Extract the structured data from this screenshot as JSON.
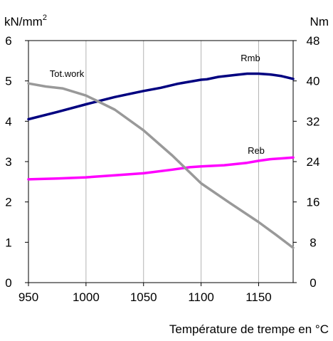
{
  "chart_data": {
    "type": "line",
    "xlabel": "Température de trempe en °C",
    "ylabel_left": "kN/mm",
    "ylabel_left_sup": "2",
    "ylabel_right": "Nm",
    "xlim": [
      950,
      1180
    ],
    "ylim_left": [
      0,
      6
    ],
    "ylim_right": [
      0,
      48
    ],
    "x_ticks": [
      "950",
      "1000",
      "1050",
      "1100",
      "1150"
    ],
    "x_tick_values": [
      950,
      1000,
      1050,
      1100,
      1150
    ],
    "y_left_ticks": [
      "0",
      "1",
      "2",
      "3",
      "4",
      "5",
      "6"
    ],
    "y_left_tick_values": [
      0,
      1,
      2,
      3,
      4,
      5,
      6
    ],
    "y_right_ticks": [
      "0",
      "8",
      "16",
      "24",
      "32",
      "40",
      "48"
    ],
    "y_right_tick_values": [
      0,
      8,
      16,
      24,
      32,
      40,
      48
    ],
    "grid": "vertical",
    "series": [
      {
        "name": "Rmb",
        "axis": "left",
        "color": "#000080",
        "x": [
          950,
          975,
          1000,
          1025,
          1050,
          1065,
          1080,
          1100,
          1105,
          1115,
          1130,
          1140,
          1150,
          1160,
          1170,
          1180
        ],
        "y": [
          4.05,
          4.23,
          4.42,
          4.6,
          4.75,
          4.83,
          4.93,
          5.03,
          5.04,
          5.1,
          5.15,
          5.18,
          5.18,
          5.16,
          5.12,
          5.05
        ]
      },
      {
        "name": "Reb",
        "axis": "left",
        "color": "#ff00ff",
        "x": [
          950,
          975,
          1000,
          1025,
          1050,
          1075,
          1090,
          1100,
          1120,
          1140,
          1150,
          1160,
          1170,
          1180
        ],
        "y": [
          2.56,
          2.58,
          2.61,
          2.66,
          2.71,
          2.8,
          2.86,
          2.88,
          2.91,
          2.97,
          3.02,
          3.06,
          3.08,
          3.1
        ]
      },
      {
        "name": "Tot.work",
        "axis": "right",
        "color": "#999999",
        "x": [
          950,
          965,
          980,
          1000,
          1010,
          1025,
          1050,
          1075,
          1100,
          1125,
          1150,
          1165,
          1180
        ],
        "y": [
          39.5,
          38.9,
          38.5,
          37.1,
          36,
          34.3,
          30.2,
          25.2,
          19.7,
          15.8,
          12,
          9.5,
          6.9
        ]
      }
    ]
  }
}
